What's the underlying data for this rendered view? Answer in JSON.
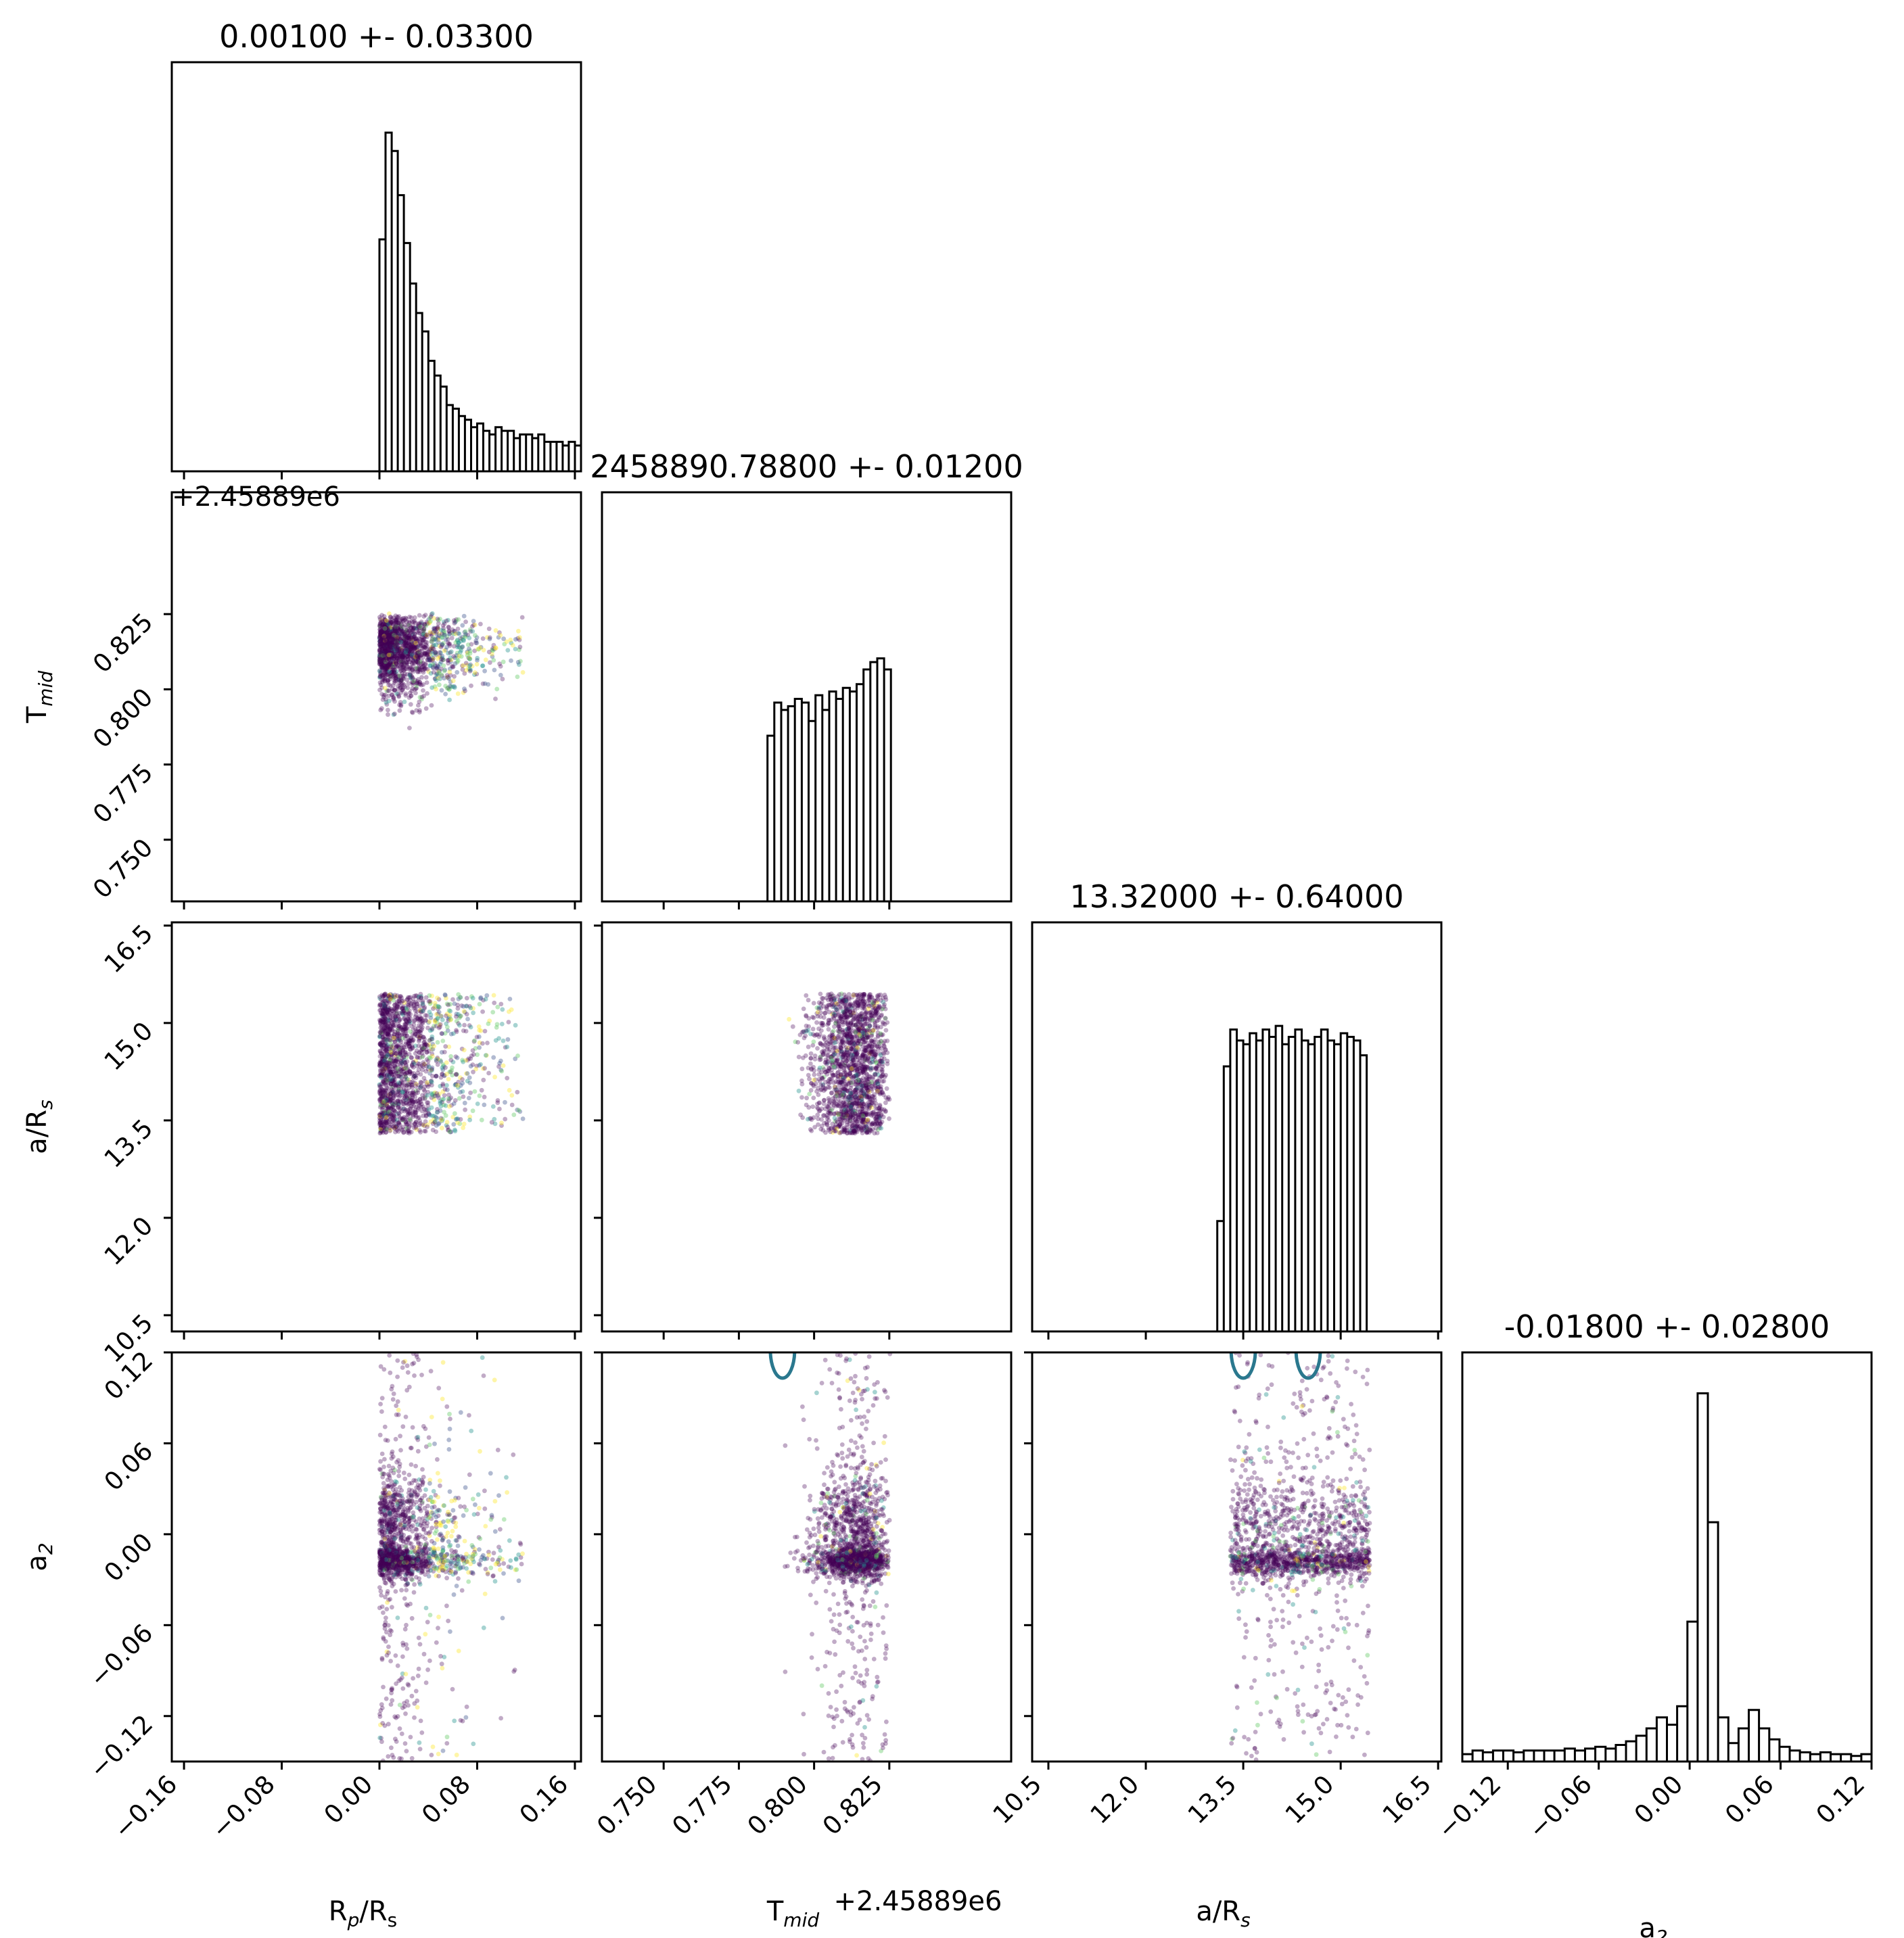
{
  "chart_data": {
    "type": "scatter",
    "colors": {
      "point_low": "#440154",
      "point_mid": "#3b528b",
      "point_teal": "#21918c",
      "point_green": "#5ec962",
      "point_yellow": "#fde725",
      "contour": "#2a788e",
      "histogram": "#000000"
    },
    "parameters": [
      {
        "key": "rprs",
        "label_main": "R",
        "label_sub": "p",
        "label_tail": "/R",
        "label_sub2": "s",
        "title": "0.00100 +- 0.03300",
        "range": [
          -0.17,
          0.165
        ],
        "ticks": [
          -0.16,
          -0.08,
          0.0,
          0.08,
          0.16
        ],
        "tick_labels": [
          "−0.16",
          "−0.08",
          "0.00",
          "0.08",
          "0.16"
        ],
        "offset": "",
        "sample_range": [
          0.0,
          0.165
        ],
        "hist": [
          0.63,
          0.92,
          0.87,
          0.75,
          0.62,
          0.51,
          0.43,
          0.38,
          0.3,
          0.26,
          0.23,
          0.18,
          0.17,
          0.15,
          0.14,
          0.12,
          0.13,
          0.11,
          0.1,
          0.12,
          0.11,
          0.11,
          0.09,
          0.1,
          0.1,
          0.09,
          0.1,
          0.08,
          0.08,
          0.08,
          0.07,
          0.08,
          0.07
        ],
        "hist_x0": 0.0,
        "hist_dx": 0.005
      },
      {
        "key": "tmid",
        "label_main": "T",
        "label_sub": "mid",
        "label_tail": "",
        "label_sub2": "",
        "title": "2458890.78800 +- 0.01200",
        "range": [
          0.7295,
          0.8655
        ],
        "ticks": [
          0.75,
          0.775,
          0.8,
          0.825
        ],
        "tick_labels": [
          "0.750",
          "0.775",
          "0.800",
          "0.825"
        ],
        "offset": "+2.45889e6",
        "sample_range": [
          0.7845,
          0.8255
        ],
        "hist": [
          0.45,
          0.54,
          0.52,
          0.53,
          0.55,
          0.54,
          0.49,
          0.56,
          0.52,
          0.57,
          0.55,
          0.58,
          0.57,
          0.59,
          0.63,
          0.65,
          0.66,
          0.63
        ],
        "hist_x0": 0.7845,
        "hist_dx": 0.00228
      },
      {
        "key": "ars",
        "label_main": "a/R",
        "label_sub": "s",
        "label_tail": "",
        "label_sub2": "",
        "title": "13.32000 +- 0.64000",
        "range": [
          10.25,
          16.55
        ],
        "ticks": [
          10.5,
          12.0,
          13.5,
          15.0,
          16.5
        ],
        "tick_labels": [
          "10.5",
          "12.0",
          "13.5",
          "15.0",
          "16.5"
        ],
        "offset": "",
        "sample_range": [
          13.3,
          15.45
        ],
        "hist": [
          0.3,
          0.72,
          0.82,
          0.79,
          0.78,
          0.81,
          0.79,
          0.82,
          0.8,
          0.83,
          0.78,
          0.8,
          0.82,
          0.79,
          0.78,
          0.8,
          0.82,
          0.79,
          0.78,
          0.81,
          0.8,
          0.79,
          0.75
        ],
        "hist_x0": 13.1,
        "hist_dx": 0.1
      },
      {
        "key": "a2",
        "label_main": "a",
        "label_sub": "2",
        "label_tail": "",
        "label_sub2": "",
        "title": "-0.01800 +- 0.02800",
        "range": [
          -0.15,
          0.12
        ],
        "ticks": [
          -0.12,
          -0.06,
          0.0,
          0.06,
          0.12
        ],
        "tick_labels": [
          "−0.12",
          "−0.06",
          "0.00",
          "0.06",
          "0.12"
        ],
        "offset": "",
        "sample_range": [
          -0.15,
          0.12
        ],
        "hist": [
          0.02,
          0.03,
          0.025,
          0.03,
          0.03,
          0.025,
          0.03,
          0.03,
          0.03,
          0.03,
          0.035,
          0.03,
          0.035,
          0.04,
          0.035,
          0.045,
          0.055,
          0.07,
          0.09,
          0.12,
          0.1,
          0.15,
          0.38,
          1.0,
          0.65,
          0.12,
          0.05,
          0.09,
          0.14,
          0.09,
          0.06,
          0.04,
          0.03,
          0.025,
          0.02,
          0.025,
          0.02,
          0.02,
          0.015,
          0.02
        ],
        "hist_x0": -0.15,
        "hist_dx": 0.00675
      }
    ]
  }
}
